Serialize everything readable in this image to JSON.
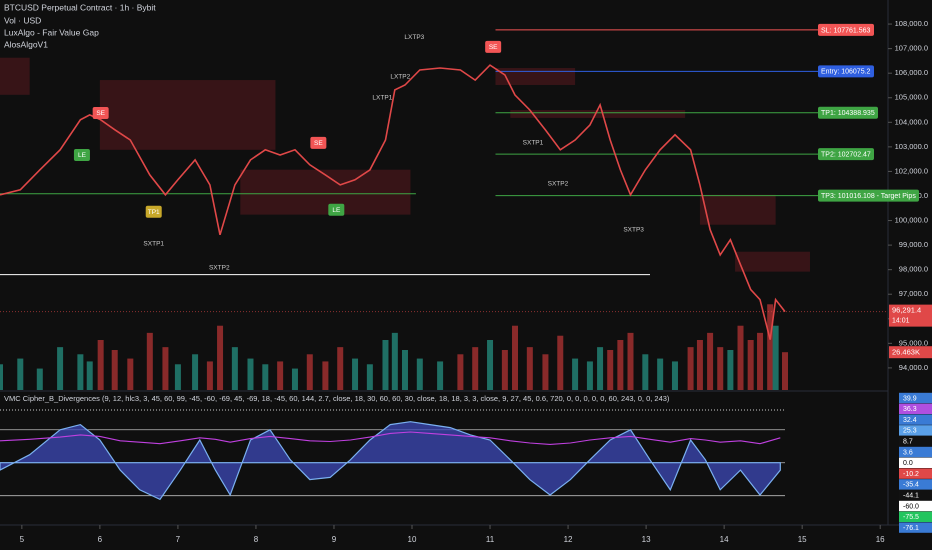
{
  "chart_data": [
    {
      "type": "line",
      "title": "BTCUSD Perpetual Contract · 1h · Bybit",
      "subtitles": [
        "Vol · USD",
        "LuxAlgo - Fair Value Gap",
        "AlosAlgoV1"
      ],
      "x": [
        4.72,
        4.98,
        5.23,
        5.49,
        5.75,
        5.87,
        6.01,
        6.19,
        6.39,
        6.64,
        6.84,
        7.0,
        7.22,
        7.41,
        7.54,
        7.73,
        7.93,
        8.12,
        8.31,
        8.5,
        8.69,
        8.89,
        9.08,
        9.27,
        9.46,
        9.66,
        9.78,
        9.91,
        10.1,
        10.36,
        10.62,
        10.81,
        11.0,
        11.19,
        11.32,
        11.51,
        11.71,
        11.9,
        12.09,
        12.28,
        12.41,
        12.54,
        12.67,
        12.8,
        12.99,
        13.18,
        13.37,
        13.57,
        13.69,
        13.82,
        13.95,
        14.08,
        14.21,
        14.34,
        14.46,
        14.59,
        14.66,
        14.78
      ],
      "series": [
        {
          "color": "#e04848",
          "values": [
            101050,
            101250,
            102060,
            102880,
            104100,
            104300,
            104100,
            103700,
            103280,
            101860,
            101050,
            101660,
            102470,
            101450,
            99420,
            101450,
            102470,
            102880,
            102670,
            102880,
            102270,
            101860,
            101450,
            101660,
            102060,
            103280,
            105320,
            105520,
            106130,
            106210,
            106130,
            105720,
            106330,
            105930,
            105110,
            104500,
            103690,
            102880,
            103280,
            103890,
            104710,
            103280,
            102060,
            101050,
            102060,
            102880,
            103490,
            102880,
            101450,
            99630,
            98600,
            99220,
            98200,
            97190,
            96780,
            95150,
            96780,
            96291.4
          ]
        }
      ],
      "volume": {
        "ylim": [
          0,
          70
        ],
        "up_color": "#1f6f64",
        "down_color": "#8a2a2a",
        "values": [
          18,
          22,
          15,
          30,
          25,
          20,
          35,
          28,
          22,
          40,
          30,
          18,
          25,
          20,
          45,
          30,
          22,
          18,
          20,
          15,
          25,
          20,
          30,
          22,
          18,
          35,
          40,
          28,
          22,
          20,
          25,
          30,
          35,
          28,
          45,
          30,
          25,
          38,
          22,
          20,
          30,
          28,
          35,
          40,
          25,
          22,
          20,
          30,
          35,
          40,
          30,
          28,
          45,
          35,
          40,
          60,
          45,
          26.463
        ],
        "last_badge": {
          "value": 26.463,
          "label": "26.463K",
          "color": "#e04848"
        }
      },
      "last_price": {
        "value": 96291.4,
        "label": "96,291.4",
        "sub": "14:01",
        "color": "#e04848"
      },
      "xlim": [
        4.72,
        16.1
      ],
      "xticks": [
        5,
        6,
        7,
        8,
        9,
        10,
        11,
        12,
        13,
        14,
        15,
        16
      ],
      "ylim": [
        93100,
        108980
      ],
      "yticks": [
        {
          "value": 94000,
          "label": "94,000.0"
        },
        {
          "value": 95000,
          "label": "95,000.0"
        },
        {
          "value": 96000,
          "label": "96,000.0"
        },
        {
          "value": 97000,
          "label": "97,000.0"
        },
        {
          "value": 98000,
          "label": "98,000.0"
        },
        {
          "value": 99000,
          "label": "99,000.0"
        },
        {
          "value": 100000,
          "label": "100,000.0"
        },
        {
          "value": 101000,
          "label": "101,000.0"
        },
        {
          "value": 102000,
          "label": "102,000.0"
        },
        {
          "value": 103000,
          "label": "103,000.0"
        },
        {
          "value": 104000,
          "label": "104,000.0"
        },
        {
          "value": 105000,
          "label": "105,000.0"
        },
        {
          "value": 106000,
          "label": "106,000.0"
        },
        {
          "value": 107000,
          "label": "107,000.0"
        },
        {
          "value": 108000,
          "label": "108,000.0"
        }
      ],
      "grid": false,
      "levels": [
        {
          "value": 107761.563,
          "label": "SL: 107761.563",
          "color": "#f25555",
          "x0": 11.07
        },
        {
          "value": 106075.2,
          "label": "Entry: 106075.2",
          "color": "#2f5fe0",
          "x0": 11.07
        },
        {
          "value": 104388.935,
          "label": "TP1: 104388.935",
          "color": "#3fa544",
          "x0": 11.07
        },
        {
          "value": 102702.47,
          "label": "TP2: 102702.47",
          "color": "#3fa544",
          "x0": 11.07
        },
        {
          "value": 101016.108,
          "label": "TP3: 101016.108 - Target Pips",
          "color": "#3fa544",
          "x0": 11.07
        }
      ],
      "zones": [
        {
          "x0": 4.72,
          "x1": 5.1,
          "y0": 106630,
          "y1": 105120
        },
        {
          "x0": 6.0,
          "x1": 8.25,
          "y0": 105720,
          "y1": 102880
        },
        {
          "x0": 7.8,
          "x1": 9.98,
          "y0": 102070,
          "y1": 100240
        },
        {
          "x0": 11.07,
          "x1": 12.09,
          "y0": 106210,
          "y1": 105520
        },
        {
          "x0": 11.26,
          "x1": 13.5,
          "y0": 104500,
          "y1": 104180
        },
        {
          "x0": 13.69,
          "x1": 14.66,
          "y0": 101050,
          "y1": 99830
        },
        {
          "x0": 14.14,
          "x1": 15.1,
          "y0": 98730,
          "y1": 97920
        }
      ],
      "lines": [
        {
          "x0": 4.72,
          "x1": 13.05,
          "y": 97800,
          "color": "#ffffff"
        },
        {
          "x0": 4.72,
          "x1": 10.05,
          "y": 101090,
          "color": "#3fa544"
        }
      ],
      "annotations": [
        {
          "text": "SE",
          "x": 6.01,
          "y": 104380,
          "style": "box",
          "color": "#f25555"
        },
        {
          "text": "LE",
          "x": 5.77,
          "y": 102670,
          "style": "box",
          "color": "#3fa544"
        },
        {
          "text": "TP1",
          "x": 6.69,
          "y": 100360,
          "style": "box",
          "color": "#c8a82a"
        },
        {
          "text": "SXTP1",
          "x": 6.69,
          "y": 99060,
          "style": "text",
          "color": "#c9c9c9"
        },
        {
          "text": "SXTP2",
          "x": 7.53,
          "y": 98080,
          "style": "text",
          "color": "#c9c9c9"
        },
        {
          "text": "SE",
          "x": 8.8,
          "y": 103160,
          "style": "box",
          "color": "#f25555"
        },
        {
          "text": "LE",
          "x": 9.03,
          "y": 100440,
          "style": "box",
          "color": "#3fa544"
        },
        {
          "text": "LXTP1",
          "x": 9.62,
          "y": 104990,
          "style": "text",
          "color": "#c9c9c9"
        },
        {
          "text": "LXTP2",
          "x": 9.85,
          "y": 105850,
          "style": "text",
          "color": "#c9c9c9"
        },
        {
          "text": "LXTP3",
          "x": 10.03,
          "y": 107470,
          "style": "text",
          "color": "#c9c9c9"
        },
        {
          "text": "SE",
          "x": 11.04,
          "y": 107070,
          "style": "box",
          "color": "#f25555"
        },
        {
          "text": "SXTP1",
          "x": 11.55,
          "y": 103160,
          "style": "text",
          "color": "#c9c9c9"
        },
        {
          "text": "SXTP2",
          "x": 11.87,
          "y": 101500,
          "style": "text",
          "color": "#c9c9c9"
        },
        {
          "text": "SXTP3",
          "x": 12.84,
          "y": 99630,
          "style": "text",
          "color": "#c9c9c9"
        }
      ]
    },
    {
      "type": "area",
      "title": "VMC Cipher_B_Divergences (9, 12, hlc3, 3, 45, 60, 99, -45, -60, -69, 45, -69, 18, -45, 60, 144, 2.7, close, 18, 30, 60, 60, 30, close, 18, 18, 3, 3, close, 9, 27, 45, 0.6, 720, 0, 0, 0, 0, 0, 60, 243, 0, 0, 243)",
      "x": [
        4.72,
        5.1,
        5.49,
        5.75,
        6.0,
        6.26,
        6.51,
        6.77,
        7.03,
        7.28,
        7.48,
        7.67,
        7.93,
        8.18,
        8.44,
        8.69,
        8.95,
        9.21,
        9.46,
        9.72,
        9.98,
        10.23,
        10.49,
        10.75,
        11.0,
        11.26,
        11.51,
        11.77,
        12.03,
        12.28,
        12.54,
        12.8,
        13.05,
        13.31,
        13.57,
        13.76,
        13.95,
        14.21,
        14.46,
        14.72
      ],
      "series": [
        {
          "color": "#3d4ab8",
          "values": [
            -10,
            11,
            45,
            52,
            31,
            -10,
            -37,
            -50,
            -10,
            31,
            -10,
            -44,
            31,
            45,
            4,
            -23,
            -20,
            4,
            31,
            52,
            56,
            52,
            48,
            38,
            31,
            4,
            -23,
            -44,
            -23,
            4,
            31,
            45,
            4,
            -37,
            31,
            4,
            -37,
            -10,
            -44,
            -10
          ]
        },
        {
          "color": "#c040e0",
          "values": [
            30,
            32,
            35,
            38,
            36,
            30,
            28,
            26,
            30,
            34,
            32,
            28,
            33,
            36,
            33,
            30,
            29,
            31,
            35,
            40,
            42,
            40,
            38,
            36,
            34,
            30,
            27,
            25,
            27,
            31,
            34,
            36,
            32,
            28,
            33,
            31,
            28,
            30,
            26,
            34
          ]
        }
      ],
      "xlim": [
        4.72,
        16.1
      ],
      "ylim": [
        -85,
        72
      ],
      "levels": [
        45,
        0,
        -45
      ],
      "badges": [
        {
          "value": 39.9,
          "label": "39.9",
          "color": "#3a7bd5",
          "text_color": "#ffffff"
        },
        {
          "value": 36.3,
          "label": "36.3",
          "color": "#b04fe0",
          "text_color": "#ffffff"
        },
        {
          "value": 32.4,
          "label": "32.4",
          "color": "#3a7bd5",
          "text_color": "#ffffff"
        },
        {
          "value": 25.3,
          "label": "25.3",
          "color": "#5aa0e8",
          "text_color": "#ffffff"
        },
        {
          "value": 8.7,
          "label": "8.7",
          "color": "#111111",
          "text_color": "#ffffff"
        },
        {
          "value": 3.6,
          "label": "3.6",
          "color": "#3a7bd5",
          "text_color": "#ffffff"
        },
        {
          "value": 0,
          "label": "0.0",
          "color": "#ffffff",
          "text_color": "#000000"
        },
        {
          "value": -10.2,
          "label": "-10.2",
          "color": "#e04848",
          "text_color": "#ffffff"
        },
        {
          "value": -35.4,
          "label": "-35.4",
          "color": "#3a7bd5",
          "text_color": "#ffffff"
        },
        {
          "value": -44.1,
          "label": "-44.1",
          "color": "#111111",
          "text_color": "#ffffff"
        },
        {
          "value": -60,
          "label": "-60.0",
          "color": "#ffffff",
          "text_color": "#000000"
        },
        {
          "value": -75.5,
          "label": "-75.5",
          "color": "#22c55e",
          "text_color": "#ffffff"
        },
        {
          "value": -76.1,
          "label": "-76.1",
          "color": "#3a7bd5",
          "text_color": "#ffffff"
        }
      ]
    }
  ]
}
